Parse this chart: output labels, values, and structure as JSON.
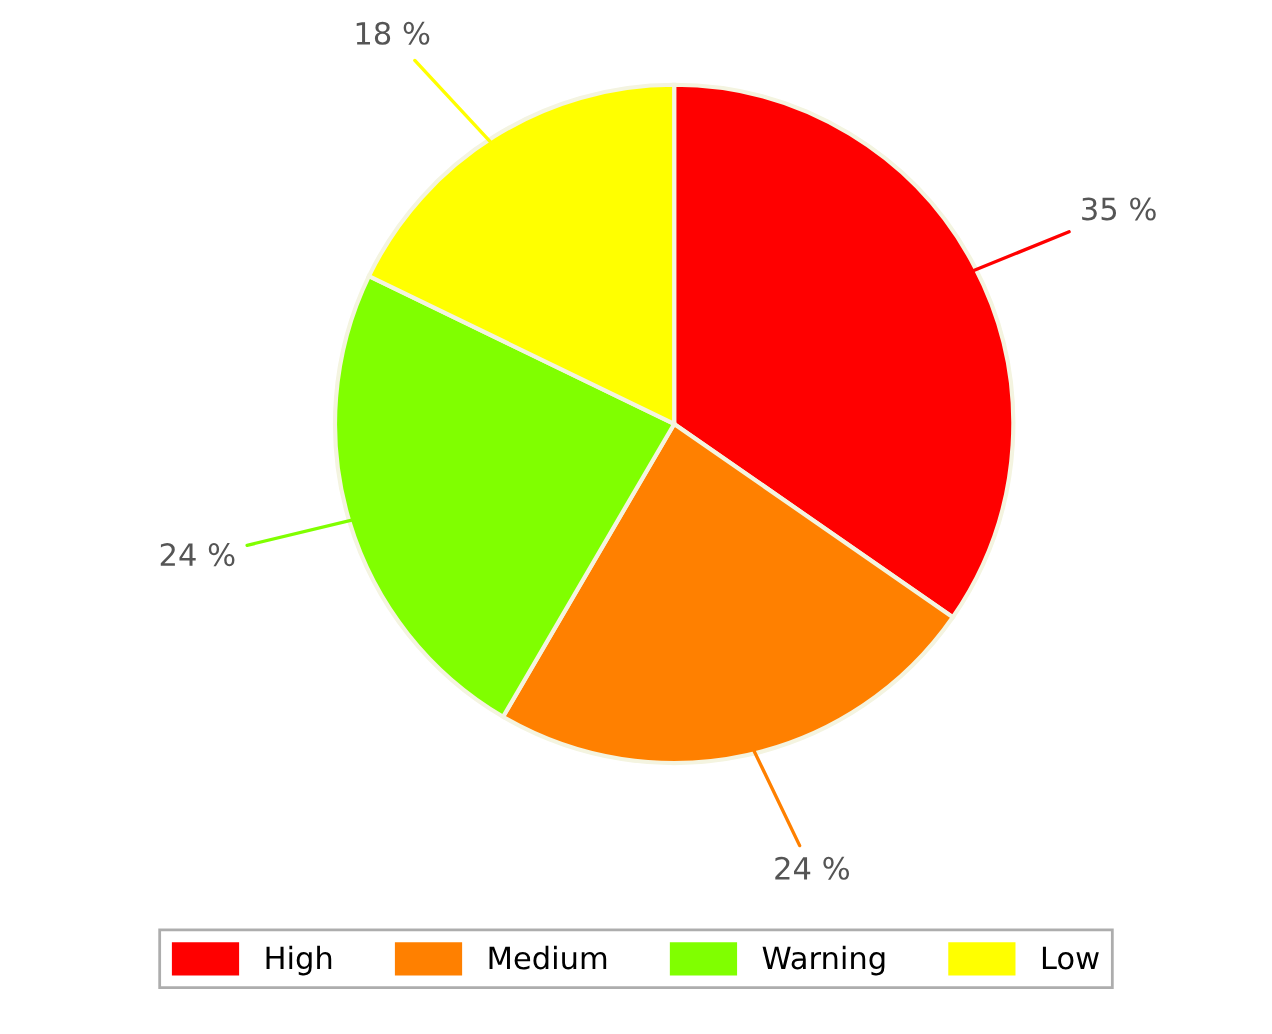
{
  "chart_data": {
    "type": "pie",
    "categories": [
      "High",
      "Medium",
      "Warning",
      "Low"
    ],
    "values": [
      35,
      24,
      24,
      18
    ],
    "value_labels": [
      "35 %",
      "24 %",
      "24 %",
      "18 %"
    ],
    "colors": [
      "#ff0000",
      "#ff8000",
      "#80ff00",
      "#ffff00"
    ],
    "legend": "bottom"
  }
}
